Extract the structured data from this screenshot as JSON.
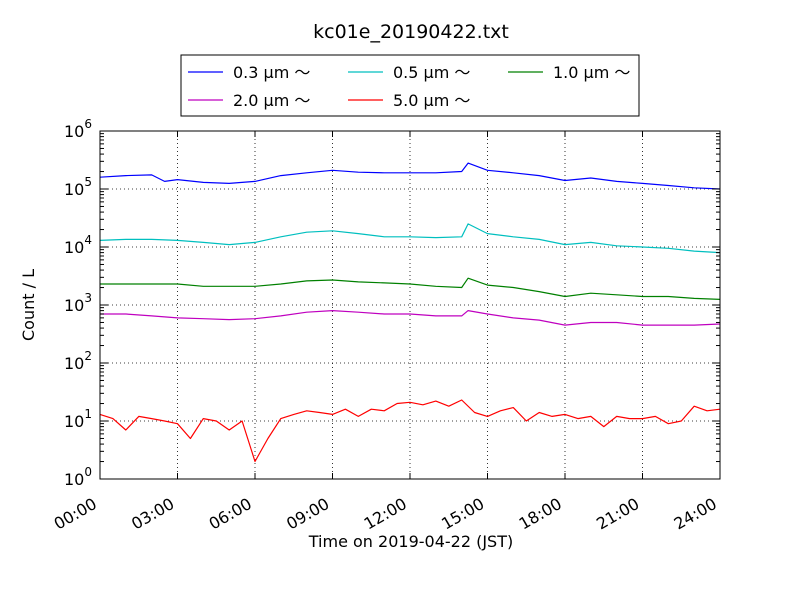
{
  "chart_data": {
    "type": "line",
    "title": "kc01e_20190422.txt",
    "xlabel": "Time on 2019-04-22 (JST)",
    "ylabel": "Count / L",
    "yscale": "log",
    "ylim": [
      1,
      1000000
    ],
    "xlim": [
      "00:00",
      "24:00"
    ],
    "x_ticks": [
      "00:00",
      "03:00",
      "06:00",
      "09:00",
      "12:00",
      "15:00",
      "18:00",
      "21:00",
      "24:00"
    ],
    "y_ticks": [
      {
        "base": "10",
        "exp": "0"
      },
      {
        "base": "10",
        "exp": "1"
      },
      {
        "base": "10",
        "exp": "2"
      },
      {
        "base": "10",
        "exp": "3"
      },
      {
        "base": "10",
        "exp": "4"
      },
      {
        "base": "10",
        "exp": "5"
      },
      {
        "base": "10",
        "exp": "6"
      }
    ],
    "grid": true,
    "legend_position": "top-center",
    "series": [
      {
        "name": "0.3 μm ～",
        "color": "#0000ff",
        "x": [
          "00:00",
          "01:00",
          "02:00",
          "02:30",
          "03:00",
          "04:00",
          "05:00",
          "06:00",
          "07:00",
          "08:00",
          "09:00",
          "10:00",
          "11:00",
          "12:00",
          "13:00",
          "14:00",
          "14:15",
          "15:00",
          "16:00",
          "17:00",
          "18:00",
          "19:00",
          "20:00",
          "21:00",
          "22:00",
          "23:00",
          "24:00"
        ],
        "values": [
          160000,
          170000,
          175000,
          135000,
          145000,
          130000,
          125000,
          135000,
          170000,
          190000,
          210000,
          195000,
          190000,
          190000,
          190000,
          200000,
          280000,
          210000,
          190000,
          170000,
          140000,
          155000,
          135000,
          125000,
          115000,
          105000,
          100000
        ]
      },
      {
        "name": "0.5 μm ～",
        "color": "#00bfbf",
        "x": [
          "00:00",
          "01:00",
          "02:00",
          "03:00",
          "04:00",
          "05:00",
          "06:00",
          "07:00",
          "08:00",
          "09:00",
          "10:00",
          "11:00",
          "12:00",
          "13:00",
          "14:00",
          "14:15",
          "15:00",
          "16:00",
          "17:00",
          "18:00",
          "19:00",
          "20:00",
          "21:00",
          "22:00",
          "23:00",
          "24:00"
        ],
        "values": [
          13000,
          13500,
          13500,
          13000,
          12000,
          11000,
          12000,
          15000,
          18000,
          19000,
          17000,
          15000,
          15000,
          14500,
          15000,
          25000,
          17000,
          15000,
          13500,
          11000,
          12000,
          10500,
          10000,
          9500,
          8500,
          8000
        ]
      },
      {
        "name": "1.0 μm ～",
        "color": "#008000",
        "x": [
          "00:00",
          "01:00",
          "02:00",
          "03:00",
          "04:00",
          "05:00",
          "06:00",
          "07:00",
          "08:00",
          "09:00",
          "10:00",
          "11:00",
          "12:00",
          "13:00",
          "14:00",
          "14:15",
          "15:00",
          "16:00",
          "17:00",
          "18:00",
          "19:00",
          "20:00",
          "21:00",
          "22:00",
          "23:00",
          "24:00"
        ],
        "values": [
          2300,
          2300,
          2300,
          2300,
          2100,
          2100,
          2100,
          2300,
          2600,
          2700,
          2500,
          2400,
          2300,
          2100,
          2000,
          2900,
          2200,
          2000,
          1700,
          1400,
          1600,
          1500,
          1400,
          1400,
          1300,
          1250
        ]
      },
      {
        "name": "2.0 μm ～",
        "color": "#bf00bf",
        "x": [
          "00:00",
          "01:00",
          "02:00",
          "03:00",
          "04:00",
          "05:00",
          "06:00",
          "07:00",
          "08:00",
          "09:00",
          "10:00",
          "11:00",
          "12:00",
          "13:00",
          "14:00",
          "14:15",
          "15:00",
          "16:00",
          "17:00",
          "18:00",
          "19:00",
          "20:00",
          "21:00",
          "22:00",
          "23:00",
          "24:00"
        ],
        "values": [
          700,
          700,
          650,
          600,
          580,
          560,
          580,
          650,
          750,
          800,
          750,
          700,
          700,
          650,
          650,
          800,
          700,
          600,
          550,
          450,
          500,
          500,
          450,
          450,
          450,
          470
        ]
      },
      {
        "name": "5.0 μm ～",
        "color": "#ff0000",
        "x": [
          "00:00",
          "00:30",
          "01:00",
          "01:30",
          "02:00",
          "02:30",
          "03:00",
          "03:30",
          "04:00",
          "04:30",
          "05:00",
          "05:30",
          "06:00",
          "06:30",
          "07:00",
          "07:30",
          "08:00",
          "08:30",
          "09:00",
          "09:30",
          "10:00",
          "10:30",
          "11:00",
          "11:30",
          "12:00",
          "12:30",
          "13:00",
          "13:30",
          "14:00",
          "14:30",
          "15:00",
          "15:30",
          "16:00",
          "16:30",
          "17:00",
          "17:30",
          "18:00",
          "18:30",
          "19:00",
          "19:30",
          "20:00",
          "20:30",
          "21:00",
          "21:30",
          "22:00",
          "22:30",
          "23:00",
          "23:30",
          "24:00"
        ],
        "values": [
          13,
          11,
          7,
          12,
          11,
          10,
          9,
          5,
          11,
          10,
          7,
          10,
          2,
          5,
          11,
          13,
          15,
          14,
          13,
          16,
          12,
          16,
          15,
          20,
          21,
          19,
          22,
          18,
          23,
          14,
          12,
          15,
          17,
          10,
          14,
          12,
          13,
          11,
          12,
          8,
          12,
          11,
          11,
          12,
          9,
          10,
          18,
          15,
          16
        ]
      }
    ]
  }
}
